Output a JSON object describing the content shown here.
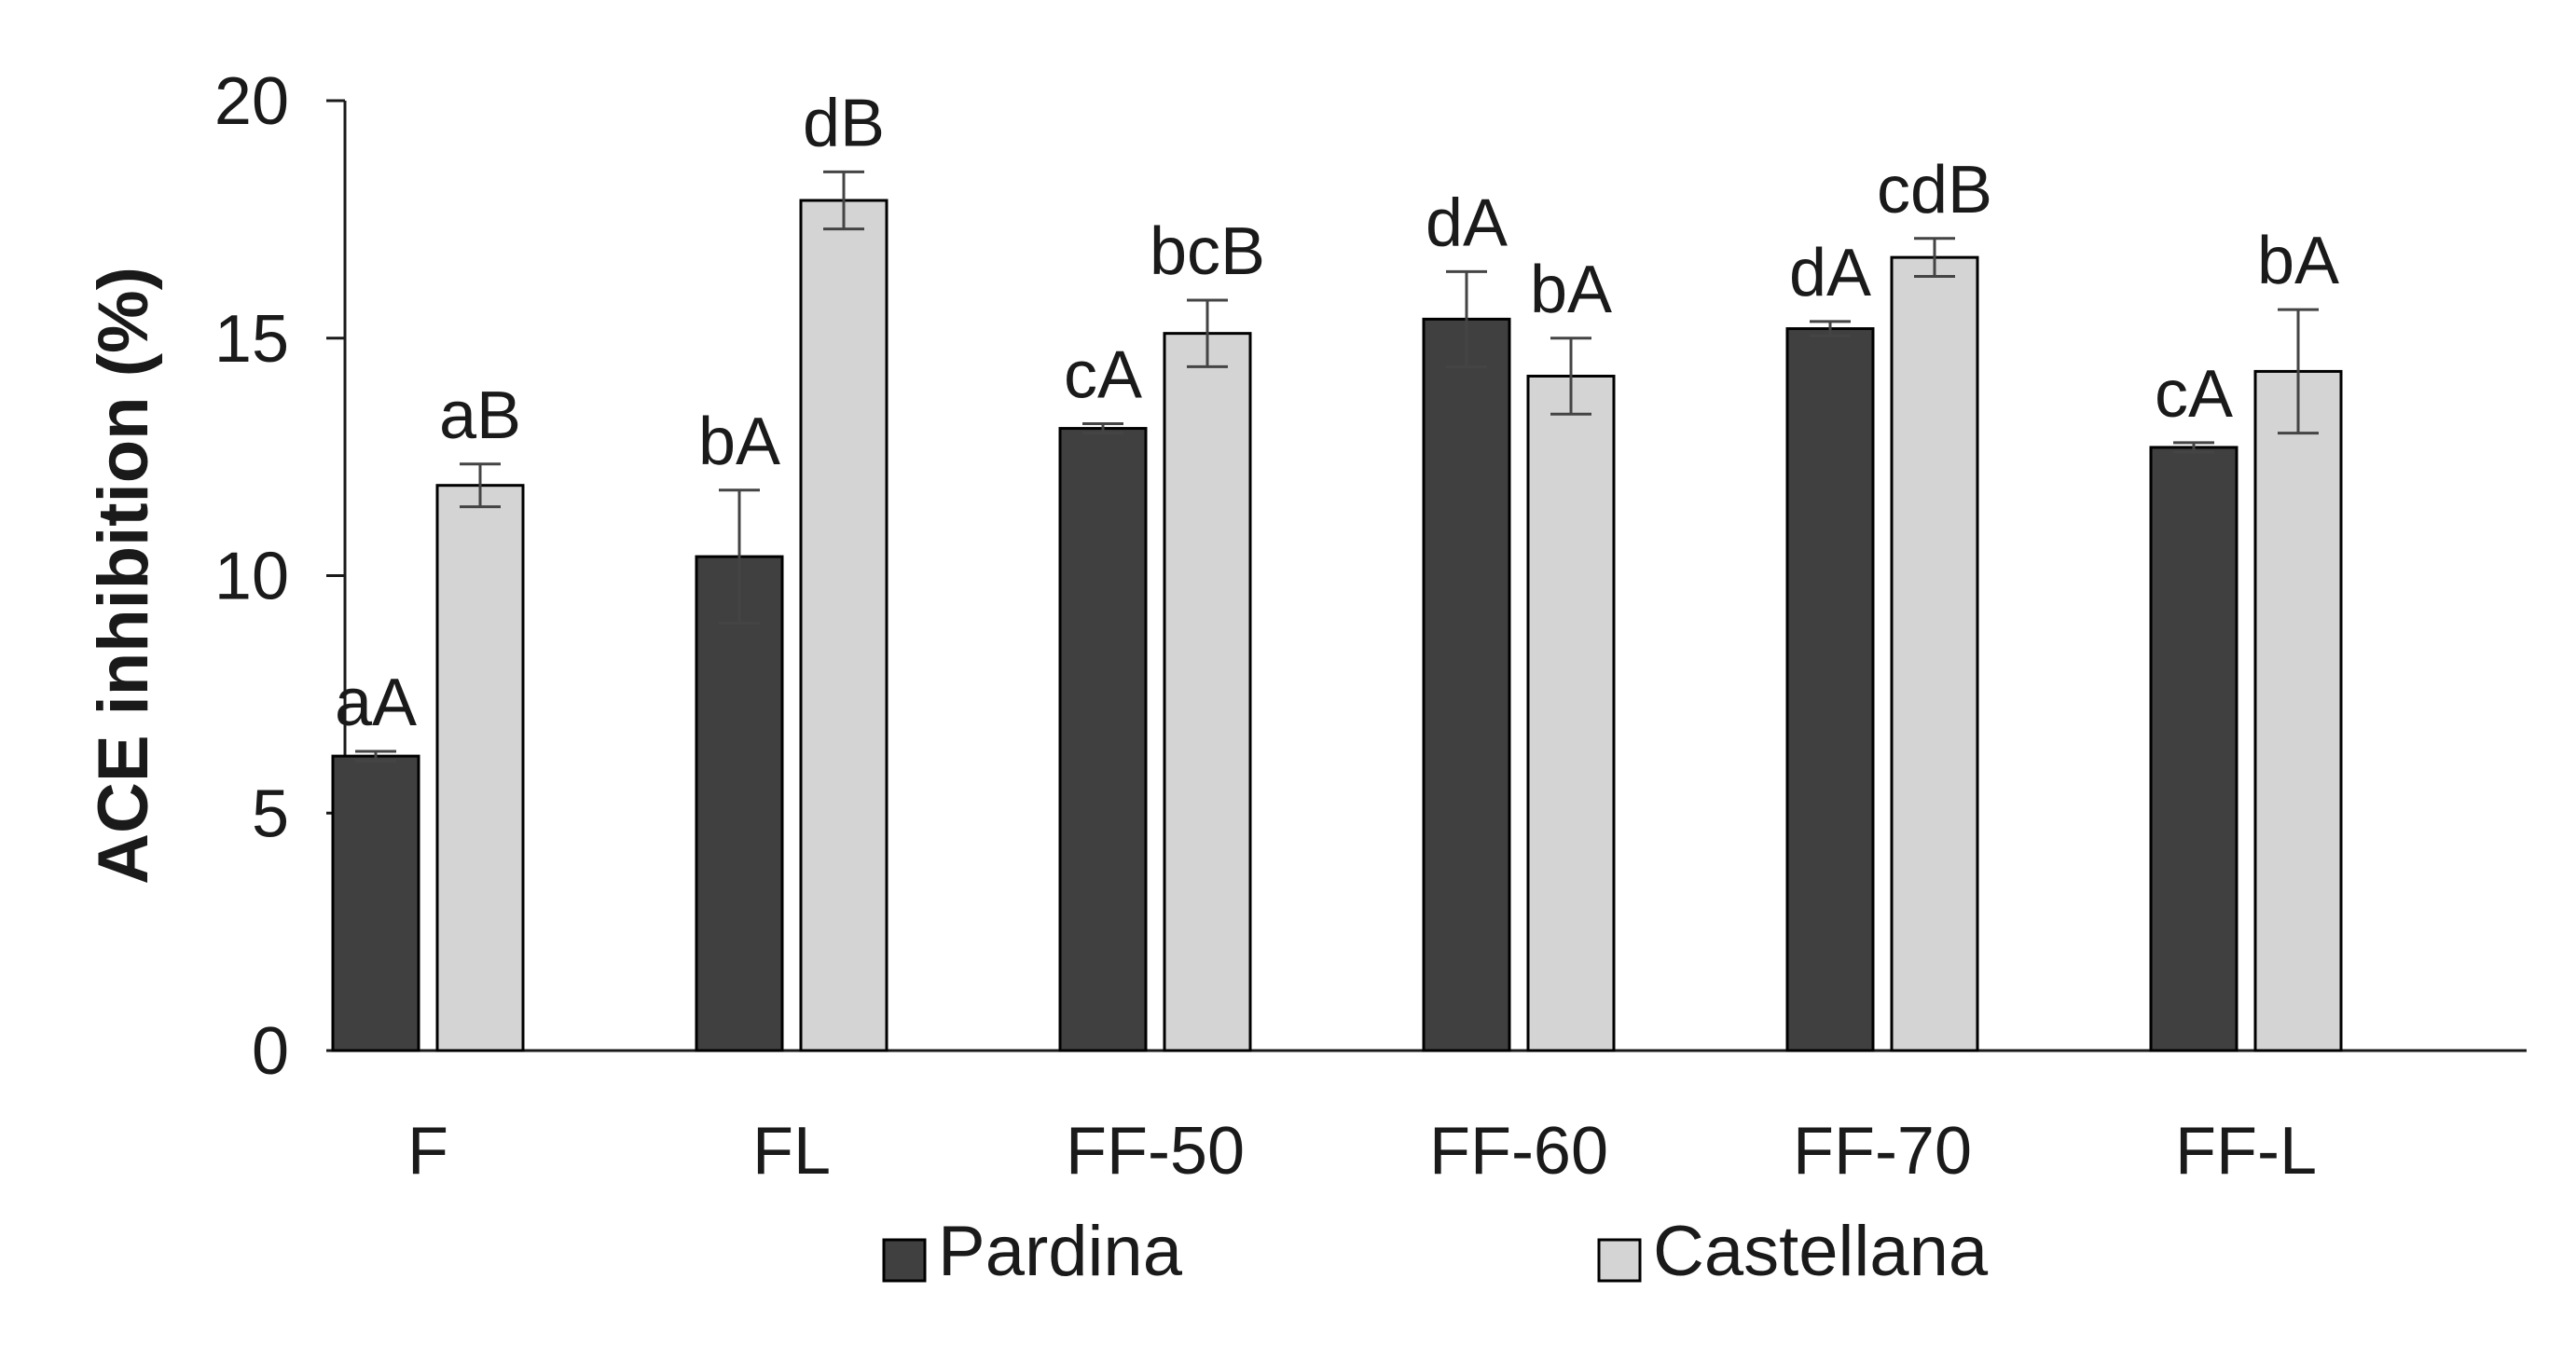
{
  "chart_data": {
    "type": "bar",
    "title": "",
    "xlabel": "",
    "ylabel": "ACE inhibition (%)",
    "ylim": [
      0,
      20
    ],
    "yticks": [
      0,
      5,
      10,
      15,
      20
    ],
    "grid": false,
    "legend_position": "bottom-center",
    "categories": [
      "F",
      "FL",
      "FF-50",
      "FF-60",
      "FF-70",
      "FF-L"
    ],
    "series": [
      {
        "name": "Pardina",
        "color": "#404040",
        "values": [
          6.2,
          10.4,
          13.1,
          15.4,
          15.2,
          12.7
        ],
        "errors": [
          0.1,
          1.4,
          0.1,
          1.0,
          0.15,
          0.1
        ],
        "labels": [
          "aA",
          "bA",
          "cA",
          "dA",
          "dA",
          "cA"
        ]
      },
      {
        "name": "Castellana",
        "color": "#d4d4d4",
        "values": [
          11.9,
          17.9,
          15.1,
          14.2,
          16.7,
          14.3
        ],
        "errors": [
          0.45,
          0.6,
          0.7,
          0.8,
          0.4,
          1.3
        ],
        "labels": [
          "aB",
          "dB",
          "bcB",
          "bA",
          "cdB",
          "bA"
        ]
      }
    ]
  }
}
